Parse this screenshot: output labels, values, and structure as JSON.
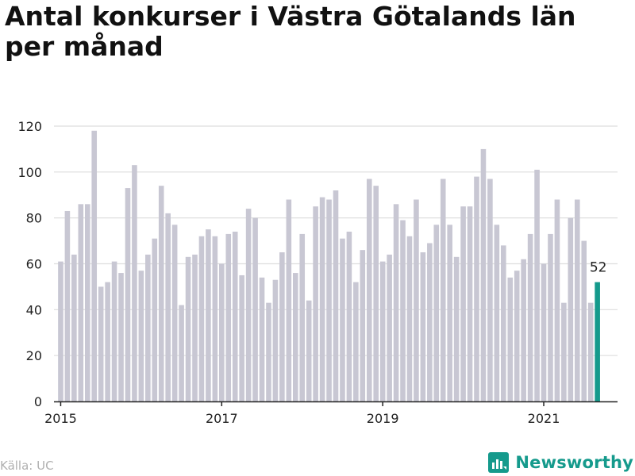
{
  "title": "Antal konkurser i Västra Götalands län per månad",
  "source": "Källa: UC",
  "brand": {
    "name": "Newsworthy",
    "icon": "newsworthy-logo-icon"
  },
  "colors": {
    "bar": "#c8c7d3",
    "highlight": "#159a8c",
    "grid": "#dddddd",
    "axis": "#222222",
    "brand": "#159a8c"
  },
  "chart_data": {
    "type": "bar",
    "title": "Antal konkurser i Västra Götalands län per månad",
    "xlabel": "",
    "ylabel": "",
    "ylim": [
      0,
      120
    ],
    "yticks": [
      0,
      20,
      40,
      60,
      80,
      100,
      120
    ],
    "xticks": [
      "2015",
      "2017",
      "2019",
      "2021"
    ],
    "xlim": [
      "2014-12",
      "2021-12"
    ],
    "grid": true,
    "highlight_last": true,
    "last_label": "52",
    "x": [
      "2015-01",
      "2015-02",
      "2015-03",
      "2015-04",
      "2015-05",
      "2015-06",
      "2015-07",
      "2015-08",
      "2015-09",
      "2015-10",
      "2015-11",
      "2015-12",
      "2016-01",
      "2016-02",
      "2016-03",
      "2016-04",
      "2016-05",
      "2016-06",
      "2016-07",
      "2016-08",
      "2016-09",
      "2016-10",
      "2016-11",
      "2016-12",
      "2017-01",
      "2017-02",
      "2017-03",
      "2017-04",
      "2017-05",
      "2017-06",
      "2017-07",
      "2017-08",
      "2017-09",
      "2017-10",
      "2017-11",
      "2017-12",
      "2018-01",
      "2018-02",
      "2018-03",
      "2018-04",
      "2018-05",
      "2018-06",
      "2018-07",
      "2018-08",
      "2018-09",
      "2018-10",
      "2018-11",
      "2018-12",
      "2019-01",
      "2019-02",
      "2019-03",
      "2019-04",
      "2019-05",
      "2019-06",
      "2019-07",
      "2019-08",
      "2019-09",
      "2019-10",
      "2019-11",
      "2019-12",
      "2020-01",
      "2020-02",
      "2020-03",
      "2020-04",
      "2020-05",
      "2020-06",
      "2020-07",
      "2020-08",
      "2020-09",
      "2020-10",
      "2020-11",
      "2020-12",
      "2021-01",
      "2021-02",
      "2021-03",
      "2021-04",
      "2021-05",
      "2021-06",
      "2021-07",
      "2021-08",
      "2021-09"
    ],
    "values": [
      61,
      83,
      64,
      86,
      86,
      118,
      50,
      52,
      61,
      56,
      93,
      103,
      57,
      64,
      71,
      94,
      82,
      77,
      42,
      63,
      64,
      72,
      75,
      72,
      60,
      73,
      74,
      55,
      84,
      80,
      54,
      43,
      53,
      65,
      88,
      56,
      73,
      44,
      85,
      89,
      88,
      92,
      71,
      74,
      52,
      66,
      97,
      94,
      61,
      64,
      86,
      79,
      72,
      88,
      65,
      69,
      77,
      97,
      77,
      63,
      85,
      85,
      98,
      110,
      97,
      77,
      68,
      54,
      57,
      62,
      73,
      101,
      60,
      73,
      88,
      43,
      80,
      88,
      70,
      43,
      52
    ]
  }
}
